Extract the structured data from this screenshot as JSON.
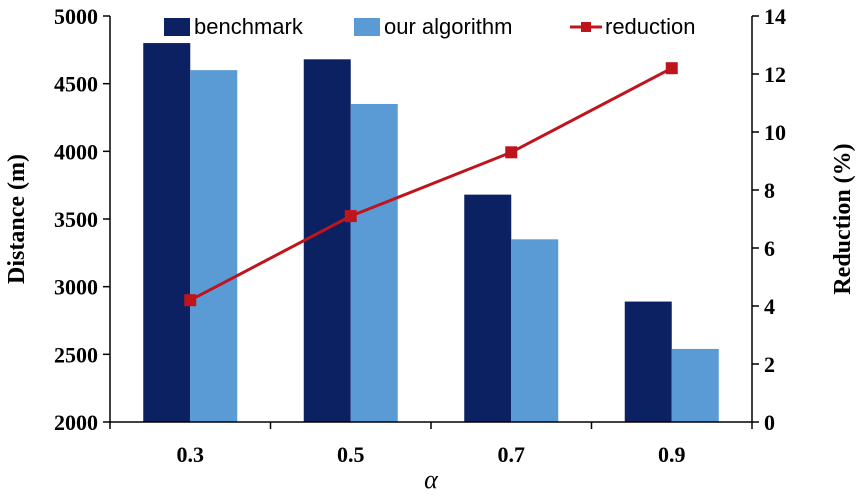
{
  "chart_data": {
    "type": "bar",
    "categories": [
      "0.3",
      "0.5",
      "0.7",
      "0.9"
    ],
    "series": [
      {
        "name": "benchmark",
        "kind": "bar",
        "axis": "left",
        "color": "#0b2161",
        "values": [
          4800,
          4680,
          3680,
          2890
        ]
      },
      {
        "name": "our algorithm",
        "kind": "bar",
        "axis": "left",
        "color": "#5b9bd5",
        "values": [
          4600,
          4350,
          3350,
          2540
        ]
      },
      {
        "name": "reduction",
        "kind": "line",
        "axis": "right",
        "color": "#c0141c",
        "values": [
          4.2,
          7.1,
          9.3,
          12.2
        ]
      }
    ],
    "xlabel": "α",
    "ylabel": "Distance (m)",
    "y2label": "Reduction (%)",
    "ylim": [
      2000,
      5000
    ],
    "yticks": [
      "2000",
      "2500",
      "3000",
      "3500",
      "4000",
      "4500",
      "5000"
    ],
    "y2lim": [
      0,
      14
    ],
    "y2ticks": [
      "0",
      "2",
      "4",
      "6",
      "8",
      "10",
      "12",
      "14"
    ],
    "legend": "top",
    "grid": false
  }
}
